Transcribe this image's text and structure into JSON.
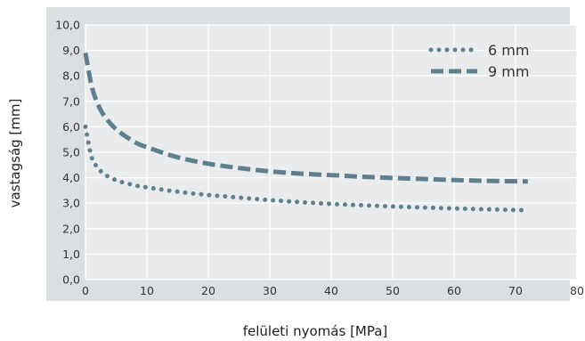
{
  "chart_data": {
    "type": "line",
    "xlabel": "felületi nyomás [MPa]",
    "ylabel": "vastagság [mm]",
    "xlim": [
      0,
      80
    ],
    "ylim": [
      0,
      10
    ],
    "x_ticks": [
      "0",
      "10",
      "20",
      "30",
      "40",
      "50",
      "60",
      "70",
      "80"
    ],
    "y_ticks": [
      "0,0",
      "1,0",
      "2,0",
      "3,0",
      "4,0",
      "5,0",
      "6,0",
      "7,0",
      "8,0",
      "9,0",
      "10,0"
    ],
    "grid": true,
    "legend_position": "top-right",
    "colors": {
      "plot_background": "#e9ebec",
      "frame_background": "#dcdfe1",
      "series": "#5e7f8e",
      "grid": "#ffffff"
    },
    "series": [
      {
        "name": "6 mm",
        "style": "dotted",
        "points": [
          [
            0,
            6.0
          ],
          [
            1,
            4.8
          ],
          [
            2,
            4.4
          ],
          [
            3,
            4.15
          ],
          [
            5,
            3.9
          ],
          [
            8,
            3.7
          ],
          [
            10,
            3.62
          ],
          [
            15,
            3.45
          ],
          [
            20,
            3.32
          ],
          [
            25,
            3.22
          ],
          [
            30,
            3.12
          ],
          [
            35,
            3.04
          ],
          [
            40,
            2.97
          ],
          [
            45,
            2.92
          ],
          [
            50,
            2.87
          ],
          [
            55,
            2.83
          ],
          [
            60,
            2.79
          ],
          [
            65,
            2.76
          ],
          [
            72,
            2.72
          ]
        ]
      },
      {
        "name": "9 mm",
        "style": "dashed",
        "points": [
          [
            0,
            8.9
          ],
          [
            1,
            7.6
          ],
          [
            2,
            6.9
          ],
          [
            3,
            6.45
          ],
          [
            5,
            5.9
          ],
          [
            8,
            5.4
          ],
          [
            10,
            5.2
          ],
          [
            15,
            4.8
          ],
          [
            20,
            4.55
          ],
          [
            25,
            4.38
          ],
          [
            30,
            4.25
          ],
          [
            35,
            4.16
          ],
          [
            40,
            4.1
          ],
          [
            45,
            4.04
          ],
          [
            50,
            3.99
          ],
          [
            55,
            3.95
          ],
          [
            60,
            3.91
          ],
          [
            65,
            3.88
          ],
          [
            72,
            3.85
          ]
        ]
      }
    ]
  }
}
